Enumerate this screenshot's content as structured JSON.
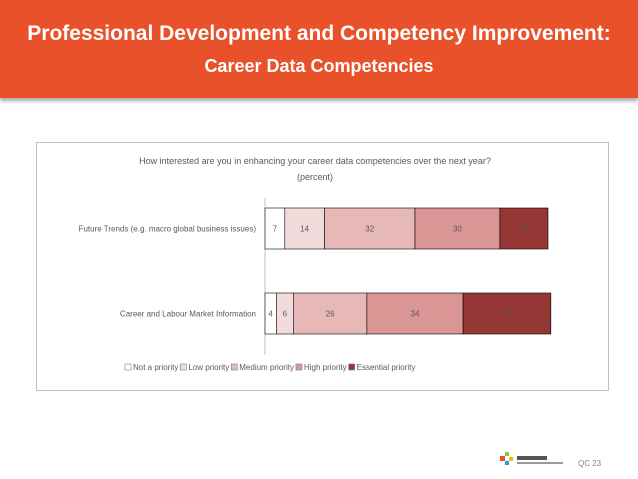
{
  "slide": {
    "title_line1": "Professional Development and Competency Improvement:",
    "title_line2": "Career Data Competencies",
    "page_number": "QC 23"
  },
  "colors": {
    "banner": "#e8512a",
    "series": [
      "#ffffff",
      "#f2dcdb",
      "#e6b9b8",
      "#d99694",
      "#953735"
    ],
    "bar_stroke": "#000000"
  },
  "chart_data": {
    "type": "bar",
    "orientation": "horizontal",
    "stacked": true,
    "title": "How interested are you in enhancing your career data competencies over the next year?",
    "subtitle": "(percent)",
    "categories": [
      "Future Trends (e.g. macro global business issues)",
      "Career and Labour Market Information"
    ],
    "series": [
      {
        "name": "Not a priority",
        "values": [
          7,
          4
        ]
      },
      {
        "name": "Low priority",
        "values": [
          14,
          6
        ]
      },
      {
        "name": "Medium priority",
        "values": [
          32,
          26
        ]
      },
      {
        "name": "High priority",
        "values": [
          30,
          34
        ]
      },
      {
        "name": "Essential priority",
        "values": [
          17,
          31
        ]
      }
    ],
    "xlim": [
      0,
      100
    ],
    "legend_position": "bottom"
  }
}
